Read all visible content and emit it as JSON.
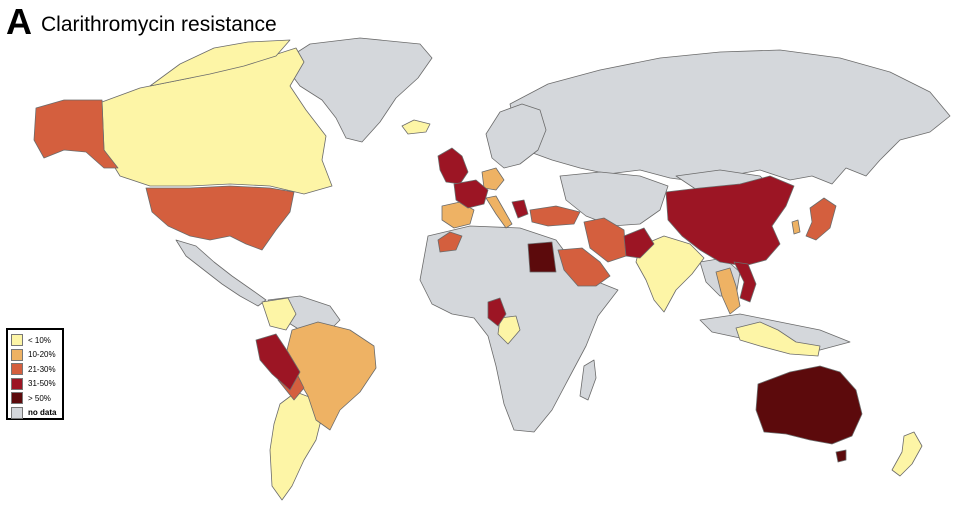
{
  "panel_letter": "A",
  "title": "Clarithromycin resistance",
  "colors": {
    "lt10": "#fdf5a6",
    "r10_20": "#eeb264",
    "r21_30": "#d45f3e",
    "r31_50": "#9c1524",
    "gt50": "#5c0a0c",
    "nodata": "#d4d7db",
    "ocean": "#ffffff"
  },
  "legend": {
    "items": [
      {
        "label": "< 10%",
        "color": "#fdf5a6"
      },
      {
        "label": "10-20%",
        "color": "#eeb264"
      },
      {
        "label": "21-30%",
        "color": "#d45f3e"
      },
      {
        "label": "31-50%",
        "color": "#9c1524"
      },
      {
        "label": "> 50%",
        "color": "#5c0a0c"
      },
      {
        "label": "no data",
        "color": "#d4d7db"
      }
    ]
  }
}
